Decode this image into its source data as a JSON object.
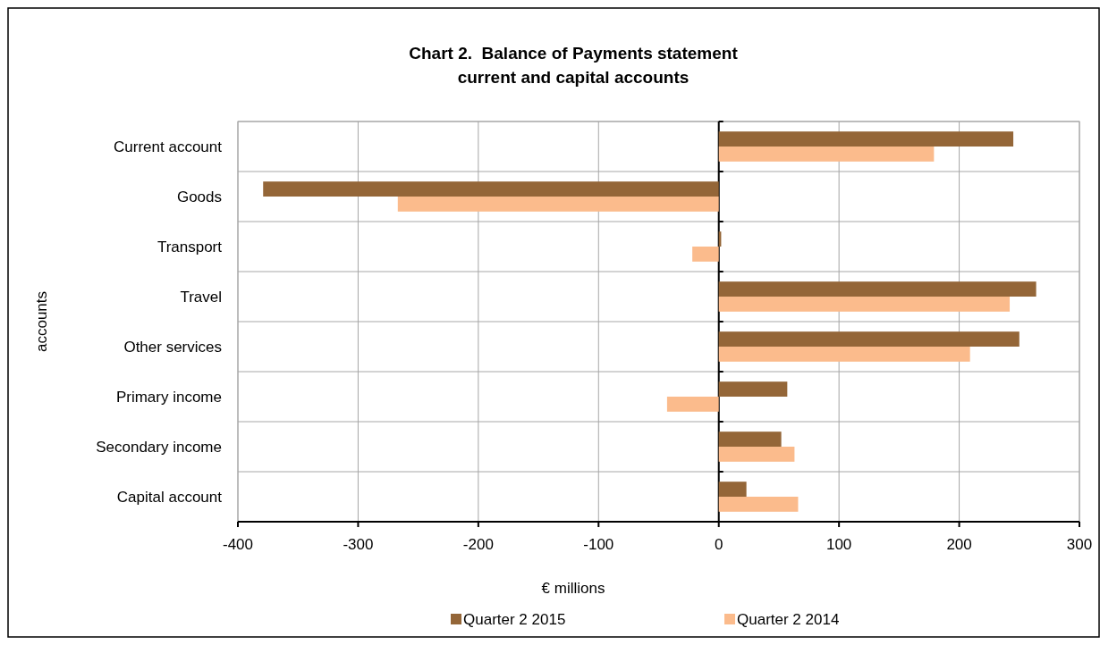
{
  "chart_data": {
    "type": "bar",
    "orientation": "horizontal",
    "title": "Chart 2.  Balance of Payments statement\ncurrent and capital accounts",
    "xlabel": "€ millions",
    "ylabel": "accounts",
    "categories": [
      "Current account",
      "Goods",
      "Transport",
      "Travel",
      "Other services",
      "Primary income",
      "Secondary income",
      "Capital account"
    ],
    "series": [
      {
        "name": "Quarter 2 2015",
        "color": "#946638",
        "values": [
          245,
          -379,
          2,
          264,
          250,
          57,
          52,
          23
        ]
      },
      {
        "name": "Quarter 2 2014",
        "color": "#fbbb8c",
        "values": [
          179,
          -267,
          -22,
          242,
          209,
          -43,
          63,
          66
        ]
      }
    ],
    "xlim": [
      -400,
      300
    ],
    "xticks": [
      -400,
      -300,
      -200,
      -100,
      0,
      100,
      200,
      300
    ],
    "grid": true,
    "legend": "bottom"
  }
}
